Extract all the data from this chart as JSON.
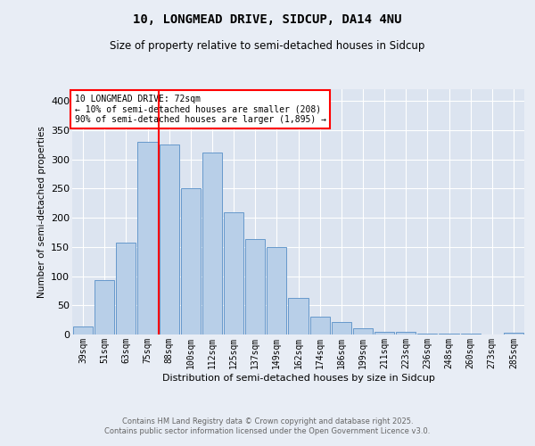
{
  "title1": "10, LONGMEAD DRIVE, SIDCUP, DA14 4NU",
  "title2": "Size of property relative to semi-detached houses in Sidcup",
  "xlabel": "Distribution of semi-detached houses by size in Sidcup",
  "ylabel": "Number of semi-detached properties",
  "bar_labels": [
    "39sqm",
    "51sqm",
    "63sqm",
    "75sqm",
    "88sqm",
    "100sqm",
    "112sqm",
    "125sqm",
    "137sqm",
    "149sqm",
    "162sqm",
    "174sqm",
    "186sqm",
    "199sqm",
    "211sqm",
    "223sqm",
    "236sqm",
    "248sqm",
    "260sqm",
    "273sqm",
    "285sqm"
  ],
  "bar_values": [
    14,
    93,
    157,
    330,
    325,
    250,
    312,
    210,
    163,
    150,
    63,
    31,
    21,
    10,
    5,
    5,
    2,
    1,
    1,
    0,
    3
  ],
  "bar_color": "#b8cfe8",
  "bar_edge_color": "#6699cc",
  "vline_x": 3.5,
  "vline_color": "red",
  "annotation_title": "10 LONGMEAD DRIVE: 72sqm",
  "annotation_line1": "← 10% of semi-detached houses are smaller (208)",
  "annotation_line2": "90% of semi-detached houses are larger (1,895) →",
  "annotation_box_color": "red",
  "ylim": [
    0,
    420
  ],
  "yticks": [
    0,
    50,
    100,
    150,
    200,
    250,
    300,
    350,
    400
  ],
  "bg_color": "#e8edf5",
  "plot_bg_color": "#dce4f0",
  "footer_line1": "Contains HM Land Registry data © Crown copyright and database right 2025.",
  "footer_line2": "Contains public sector information licensed under the Open Government Licence v3.0."
}
